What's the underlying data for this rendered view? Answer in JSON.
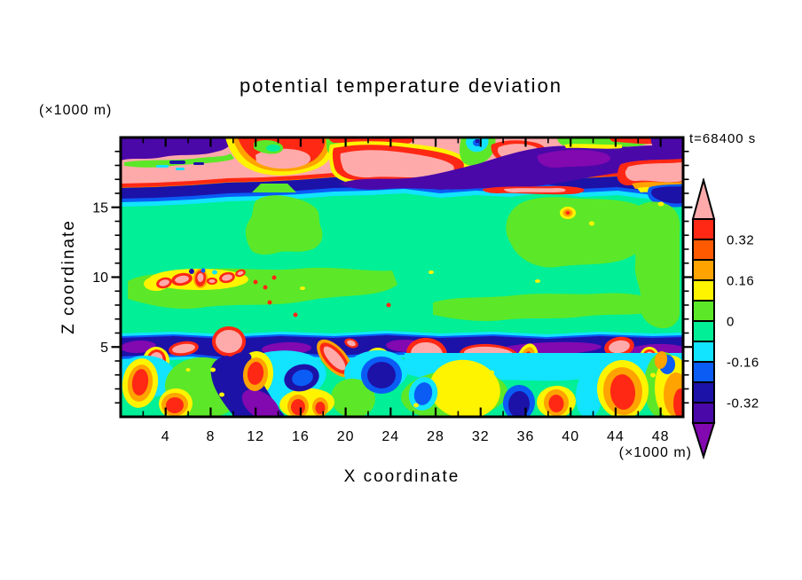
{
  "chart_data": {
    "type": "heatmap",
    "subtype": "filled-contour",
    "title": "potential temperature deviation",
    "annotation": "t=68400 s",
    "xlabel": "X coordinate",
    "x_unit": "(×1000 m)",
    "ylabel": "Z coordinate",
    "y_unit": "(×1000 m)",
    "xlim": [
      0,
      50
    ],
    "ylim": [
      0,
      20
    ],
    "x_ticks": [
      4,
      8,
      12,
      16,
      20,
      24,
      28,
      32,
      36,
      40,
      44,
      48
    ],
    "x_minor_step": 2,
    "y_ticks": [
      5,
      10,
      15
    ],
    "y_minor_step": 1,
    "grid": false,
    "contour_interval": 0.08,
    "levels": [
      -0.4,
      -0.32,
      -0.24,
      -0.16,
      -0.08,
      0,
      0.08,
      0.16,
      0.24,
      0.32,
      0.4
    ],
    "palette": {
      "pink": "#FFAAAA",
      "red": "#FF2814",
      "orangered": "#FF5A00",
      "orange": "#FFA300",
      "yellow": "#FFF400",
      "chartreuse": "#5CE828",
      "springgreen": "#00EF97",
      "cyan": "#12E3FF",
      "blue": "#0A5CF5",
      "navy": "#1C12A8",
      "indigo": "#4A08A8",
      "purple": "#8208B0"
    },
    "level_colors": [
      {
        "min": 0.4,
        "max": null,
        "color": "pink"
      },
      {
        "min": 0.32,
        "max": 0.4,
        "color": "red"
      },
      {
        "min": 0.24,
        "max": 0.32,
        "color": "orangered"
      },
      {
        "min": 0.16,
        "max": 0.24,
        "color": "orange"
      },
      {
        "min": 0.08,
        "max": 0.16,
        "color": "yellow"
      },
      {
        "min": 0.0,
        "max": 0.08,
        "color": "chartreuse"
      },
      {
        "min": -0.08,
        "max": 0.0,
        "color": "springgreen"
      },
      {
        "min": -0.16,
        "max": -0.08,
        "color": "cyan"
      },
      {
        "min": -0.24,
        "max": -0.16,
        "color": "blue"
      },
      {
        "min": -0.32,
        "max": -0.24,
        "color": "navy"
      },
      {
        "min": -0.4,
        "max": -0.32,
        "color": "indigo"
      },
      {
        "min": null,
        "max": -0.4,
        "color": "purple"
      }
    ],
    "colorbar": {
      "orientation": "vertical",
      "position": "right",
      "top_arrow": "pink",
      "bottom_arrow": "purple",
      "segments_top_to_bottom": [
        "red",
        "orangered",
        "orange",
        "yellow",
        "chartreuse",
        "springgreen",
        "cyan",
        "blue",
        "navy",
        "indigo"
      ],
      "labels": [
        {
          "text": "0.32",
          "boundary": 1
        },
        {
          "text": "0.16",
          "boundary": 3
        },
        {
          "text": "0",
          "boundary": 5
        },
        {
          "text": "-0.16",
          "boundary": 7
        },
        {
          "text": "-0.32",
          "boundary": 9
        }
      ]
    },
    "field_summary": [
      "Wavy inversion band near z=17-19.5 km with strong anomalies: pink/red maxima (>0.32) interleaved with indigo/navy minima (<-0.24)",
      "Near-zero field (springgreen/chartreuse, within ±0.08) through mid-levels z≈5.5-16.5 km with a row of small intense pink/red spots near z≈10 km, x≈3-12 km and isolated specks elsewhere",
      "Thin negative navy/purple band along z≈5 km containing embedded pink maxima",
      "Turbulent boundary layer below z≈4.5 km with alternating warm cells (yellow/orange/red) and cool pockets (cyan/blue/navy/purple)"
    ]
  }
}
